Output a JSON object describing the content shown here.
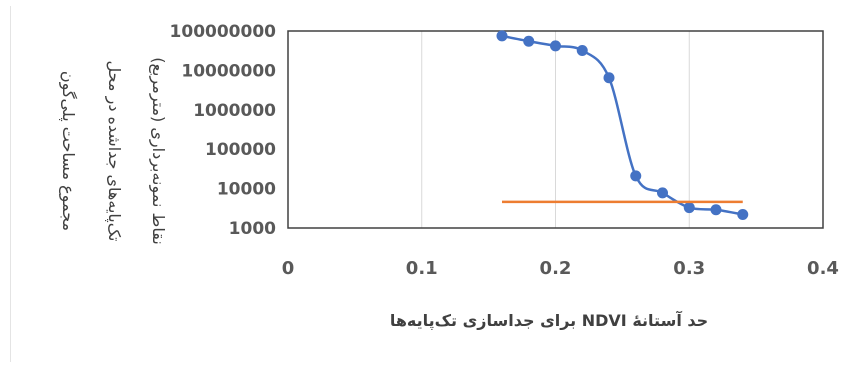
{
  "chart_data": {
    "type": "scatter",
    "title": "",
    "xlabel": "حد آستانهٔ NDVI برای جداسازی تک‌پایه‌ها",
    "ylabel_lines": [
      "مجموع مساحت پلی‌گون",
      "تک‌پایه‌های جداشده در محل",
      "نقاط نمونه‌برداری (مترمربع)"
    ],
    "xlim": [
      0,
      0.4
    ],
    "ylim": [
      1000,
      100000000
    ],
    "yscale": "log",
    "x_ticks": [
      "0",
      "0.1",
      "0.2",
      "0.3",
      "0.4"
    ],
    "y_ticks": [
      "1000",
      "10000",
      "100000",
      "1000000",
      "10000000",
      "100000000"
    ],
    "grid": "vertical",
    "series": [
      {
        "type": "line-markers",
        "color": "#4472c4",
        "x": [
          0.16,
          0.18,
          0.2,
          0.22,
          0.24,
          0.26,
          0.28,
          0.3,
          0.32,
          0.34
        ],
        "y": [
          75000000,
          55000000,
          42000000,
          32000000,
          6500000,
          21000,
          7800,
          3300,
          2900,
          2200
        ]
      },
      {
        "type": "line",
        "color": "#ed7d31",
        "x": [
          0.16,
          0.34
        ],
        "y": [
          4600,
          4600
        ]
      }
    ]
  }
}
